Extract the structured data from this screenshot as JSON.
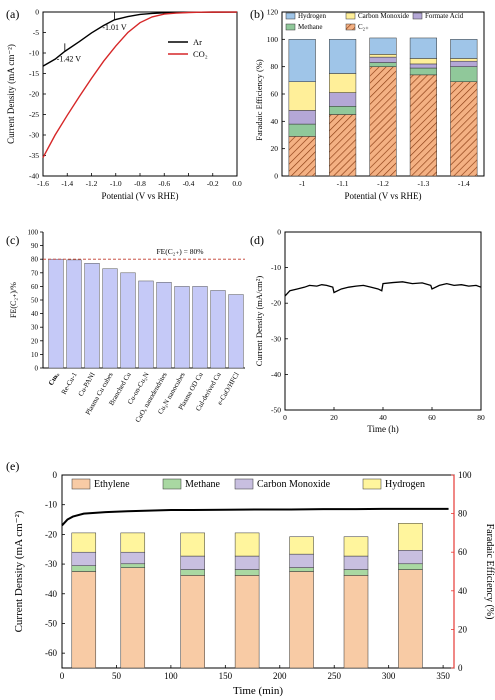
{
  "chart_data": [
    {
      "panel": "(a)",
      "type": "line",
      "xlabel": "Potential (V vs RHE)",
      "ylabel": "Current Density (mA cm⁻²)",
      "xlim": [
        -1.6,
        0.0
      ],
      "ylim": [
        -40,
        0
      ],
      "xticks": [
        "-1.6",
        "-1.4",
        "-1.2",
        "-1.0",
        "-0.8",
        "-0.6",
        "-0.4",
        "-0.2",
        "0.0"
      ],
      "yticks": [
        "0",
        "-5",
        "-10",
        "-15",
        "-20",
        "-25",
        "-30",
        "-35",
        "-40"
      ],
      "legend": "right",
      "series": [
        {
          "name": "Ar",
          "color": "#000000",
          "x": [
            -1.6,
            -1.5,
            -1.42,
            -1.3,
            -1.2,
            -1.1,
            -1.01,
            -0.9,
            -0.8,
            -0.7,
            -0.6,
            -0.5,
            -0.4,
            -0.3,
            -0.2,
            0.0
          ],
          "y": [
            -13.2,
            -11.5,
            -9.6,
            -7.2,
            -5.1,
            -3.3,
            -1.9,
            -1.1,
            -0.6,
            -0.35,
            -0.2,
            -0.12,
            -0.08,
            -0.05,
            -0.03,
            -0.01
          ]
        },
        {
          "name": "CO₂",
          "color": "#d62728",
          "x": [
            -1.6,
            -1.5,
            -1.4,
            -1.3,
            -1.2,
            -1.1,
            -1.0,
            -0.9,
            -0.8,
            -0.7,
            -0.6,
            -0.5,
            -0.4,
            -0.3,
            -0.2,
            0.0
          ],
          "y": [
            -35.5,
            -30.0,
            -25.2,
            -20.6,
            -16.2,
            -12.0,
            -8.3,
            -5.0,
            -2.6,
            -1.2,
            -0.5,
            -0.25,
            -0.12,
            -0.05,
            -0.03,
            -0.01
          ]
        }
      ],
      "annotations": [
        {
          "text": "-1.01 V",
          "x": -1.01,
          "y": -1.9,
          "color": "#1a237e"
        },
        {
          "text": "-1.42 V",
          "x": -1.42,
          "y": -9.6,
          "color": "#1a237e"
        }
      ]
    },
    {
      "panel": "(b)",
      "type": "bar",
      "stacked": true,
      "xlabel": "Potential (V vs RHE)",
      "ylabel": "Faradaic Efficiency (%)",
      "ylim": [
        0,
        120
      ],
      "yticks": [
        "0",
        "20",
        "40",
        "60",
        "80",
        "100",
        "120"
      ],
      "categories": [
        "-1",
        "-1.1",
        "-1.2",
        "-1.3",
        "-1.4"
      ],
      "legend": "top",
      "series": [
        {
          "name": "C₂₊",
          "color": "#f4b183",
          "hatch": true,
          "values": [
            29,
            45,
            80,
            74,
            69
          ]
        },
        {
          "name": "Methane",
          "color": "#90c89a",
          "values": [
            9,
            6,
            3,
            5,
            11
          ]
        },
        {
          "name": "Formate Acid",
          "color": "#b4a7d6",
          "values": [
            10,
            10,
            4,
            3,
            4
          ]
        },
        {
          "name": "Carbon Monoxide",
          "color": "#ffef99",
          "values": [
            21,
            14,
            2,
            4,
            2
          ]
        },
        {
          "name": "Hydrogen",
          "color": "#9fc5e8",
          "values": [
            31,
            25,
            12,
            15,
            14
          ]
        }
      ]
    },
    {
      "panel": "(c)",
      "type": "bar",
      "ylabel": "FE(C₂₊)/%",
      "ylim": [
        0,
        100
      ],
      "yticks": [
        "0",
        "10",
        "20",
        "30",
        "40",
        "50",
        "60",
        "70",
        "80",
        "90",
        "100"
      ],
      "reference_line": {
        "value": 80,
        "label": "FE(C₂₊) = 80%",
        "color": "#c0392b"
      },
      "categories": [
        "Cuₖₑ",
        "Re-Cu-1",
        "Cu-PANI",
        "Plasma Cu cubes",
        "Branched Cu",
        "Cu-on-Cu₃N",
        "CuOₓ nanodendrites",
        "Cu₃N nanocubes",
        "Plasma OD Cu",
        "Cul-derived Cu",
        "e-CuO/HFCl"
      ],
      "values": [
        80,
        79.5,
        77,
        73,
        70,
        64,
        63,
        60,
        60,
        57,
        54
      ],
      "color": "#c5c9f7"
    },
    {
      "panel": "(d)",
      "type": "line",
      "xlabel": "Time (h)",
      "ylabel": "Current Density (mA/cm²)",
      "xlim": [
        0,
        80
      ],
      "ylim": [
        -50,
        0
      ],
      "xticks": [
        "0",
        "20",
        "40",
        "60",
        "80"
      ],
      "yticks": [
        "0",
        "-10",
        "-20",
        "-30",
        "-40",
        "-50"
      ],
      "series": [
        {
          "name": "",
          "color": "#000000",
          "x": [
            0,
            2,
            5,
            8,
            10,
            13,
            15,
            17,
            19.5,
            20,
            23,
            26,
            29,
            32,
            35,
            38,
            39.5,
            40,
            44,
            48,
            52,
            56,
            59.5,
            60,
            63,
            66,
            69,
            72,
            75,
            78,
            80
          ],
          "y": [
            -18,
            -16.5,
            -16,
            -15.5,
            -15,
            -15.2,
            -14.8,
            -15,
            -15.5,
            -17,
            -16,
            -15.5,
            -15.2,
            -15,
            -15.5,
            -16,
            -16.5,
            -14.5,
            -14.2,
            -14,
            -14.5,
            -14.3,
            -15,
            -16,
            -15,
            -14.5,
            -15,
            -14.8,
            -15.2,
            -15,
            -15.5
          ]
        }
      ]
    },
    {
      "panel": "(e)",
      "type": "bar",
      "xlabel": "Time (min)",
      "ylabel": "Current Density (mA cm⁻²)",
      "ylabel_right": "Faradaic Efficiency (%)",
      "xlim": [
        0,
        360
      ],
      "ylim": [
        -65,
        0
      ],
      "ylim_right": [
        0,
        100
      ],
      "xticks": [
        "0",
        "50",
        "100",
        "150",
        "200",
        "250",
        "300",
        "350"
      ],
      "yticks": [
        "0",
        "-10",
        "-20",
        "-30",
        "-40",
        "-50",
        "-60"
      ],
      "yticks_right": [
        "0",
        "20",
        "40",
        "60",
        "80",
        "100"
      ],
      "legend": "top",
      "bar_x": [
        20,
        65,
        120,
        170,
        220,
        270,
        320
      ],
      "series": [
        {
          "name": "Ethylene",
          "color": "#f8cba5",
          "values": [
            50,
            52,
            48,
            48,
            50,
            48,
            51
          ]
        },
        {
          "name": "Methane",
          "color": "#a9d8a2",
          "values": [
            3,
            2,
            3,
            3,
            2,
            3,
            3
          ]
        },
        {
          "name": "Carbon Monoxide",
          "color": "#c8bfe0",
          "values": [
            7,
            6,
            7,
            7,
            7,
            7,
            7
          ]
        },
        {
          "name": "Hydrogen",
          "color": "#fff59d",
          "values": [
            10,
            10,
            12,
            12,
            9,
            10,
            14
          ]
        }
      ],
      "line": {
        "name": "",
        "color": "#000000",
        "x": [
          0,
          5,
          10,
          20,
          40,
          60,
          80,
          100,
          120,
          150,
          180,
          210,
          240,
          270,
          300,
          330,
          355
        ],
        "y": [
          -17,
          -15,
          -14,
          -13,
          -12.5,
          -12.2,
          -12,
          -11.8,
          -11.8,
          -11.7,
          -11.6,
          -11.6,
          -11.5,
          -11.5,
          -11.4,
          -11.4,
          -11.4
        ]
      }
    }
  ]
}
